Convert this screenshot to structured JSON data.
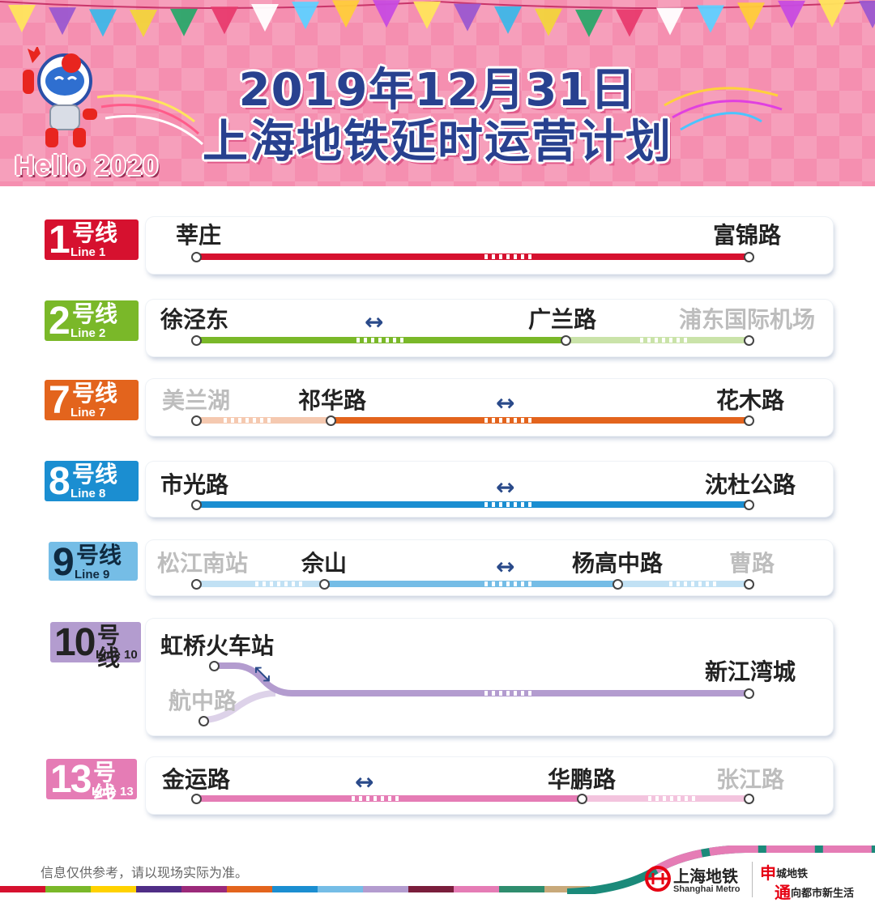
{
  "header": {
    "title_line1": "2019年12月31日",
    "title_line2": "上海地铁延时运营计划",
    "hello": "Hello 2020",
    "mascot": "metro-mascot-icon"
  },
  "lines": [
    {
      "num": "1",
      "hao": "号线",
      "line": "Line 1",
      "color": "#d6112f",
      "stations": [
        {
          "name": "莘庄",
          "dim": false
        },
        {
          "name": "富锦路",
          "dim": false
        }
      ]
    },
    {
      "num": "2",
      "hao": "号线",
      "line": "Line 2",
      "color": "#7ab829",
      "stations": [
        {
          "name": "徐泾东",
          "dim": false
        },
        {
          "name": "广兰路",
          "dim": false
        },
        {
          "name": "浦东国际机场",
          "dim": true
        }
      ],
      "arrow": "↔"
    },
    {
      "num": "7",
      "hao": "号线",
      "line": "Line 7",
      "color": "#e3641d",
      "stations": [
        {
          "name": "美兰湖",
          "dim": true
        },
        {
          "name": "祁华路",
          "dim": false
        },
        {
          "name": "花木路",
          "dim": false
        }
      ],
      "arrow": "↔"
    },
    {
      "num": "8",
      "hao": "号线",
      "line": "Line 8",
      "color": "#1b8ed1",
      "stations": [
        {
          "name": "市光路",
          "dim": false
        },
        {
          "name": "沈杜公路",
          "dim": false
        }
      ],
      "arrow": "↔"
    },
    {
      "num": "9",
      "hao": "号线",
      "line": "Line 9",
      "color": "#75bde6",
      "stations": [
        {
          "name": "松江南站",
          "dim": true
        },
        {
          "name": "佘山",
          "dim": false
        },
        {
          "name": "杨高中路",
          "dim": false
        },
        {
          "name": "曹路",
          "dim": true
        }
      ],
      "arrow": "↔"
    },
    {
      "num": "10",
      "hao": "号线",
      "line": "Line 10",
      "color": "#b39ccf",
      "stations": [
        {
          "name": "虹桥火车站",
          "dim": false
        },
        {
          "name": "航中路",
          "dim": true
        },
        {
          "name": "新江湾城",
          "dim": false
        }
      ],
      "arrow": "⤡"
    },
    {
      "num": "13",
      "hao": "号线",
      "line": "Line 13",
      "color": "#e57cb5",
      "stations": [
        {
          "name": "金运路",
          "dim": false
        },
        {
          "name": "华鹏路",
          "dim": false
        },
        {
          "name": "张江路",
          "dim": true
        }
      ],
      "arrow": "↔"
    }
  ],
  "footer": {
    "note": "信息仅供参考，请以现场实际为准。",
    "logo_cn": "上海地铁",
    "logo_en": "Shanghai Metro",
    "slogan_char1": "申",
    "slogan_rest1": "城地铁",
    "slogan_char2": "通",
    "slogan_rest2": "向都市新生活",
    "logo_icon": "shanghai-metro-logo-icon"
  }
}
